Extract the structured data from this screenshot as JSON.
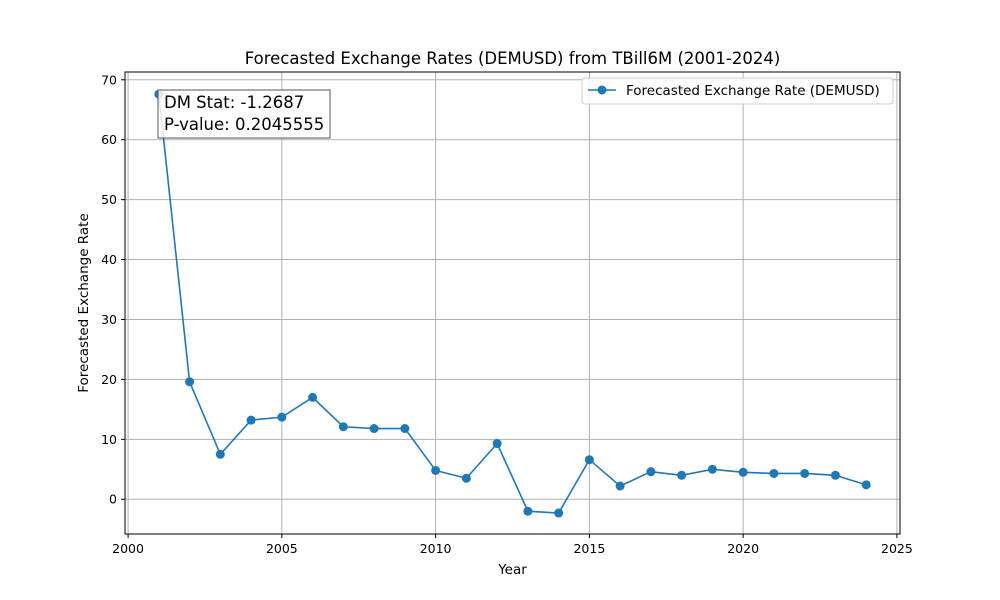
{
  "chart_data": {
    "type": "line",
    "title": "Forecasted Exchange Rates (DEMUSD) from TBill6M (2001-2024)",
    "xlabel": "Year",
    "ylabel": "Forecasted Exchange Rate",
    "xlim": [
      1999.9,
      2025.1
    ],
    "ylim": [
      -5.8,
      71.3
    ],
    "xticks": [
      2000,
      2005,
      2010,
      2015,
      2020,
      2025
    ],
    "yticks": [
      0,
      10,
      20,
      30,
      40,
      50,
      60,
      70
    ],
    "grid": true,
    "legend_position": "top-right",
    "series": [
      {
        "name": "Forecasted Exchange Rate (DEMUSD)",
        "color": "#1f77b4",
        "x": [
          2001,
          2002,
          2003,
          2004,
          2005,
          2006,
          2007,
          2008,
          2009,
          2010,
          2011,
          2012,
          2013,
          2014,
          2015,
          2016,
          2017,
          2018,
          2019,
          2020,
          2021,
          2022,
          2023,
          2024
        ],
        "y": [
          67.6,
          19.6,
          7.5,
          13.2,
          13.7,
          17.0,
          12.1,
          11.8,
          11.8,
          4.8,
          3.5,
          9.3,
          -2.0,
          -2.3,
          6.6,
          2.2,
          4.6,
          4.0,
          5.0,
          4.5,
          4.3,
          4.3,
          4.0,
          2.4
        ]
      }
    ],
    "annotation": {
      "lines": [
        "DM Stat: -1.2687",
        "P-value: 0.2045555"
      ],
      "position": "top-left"
    }
  }
}
